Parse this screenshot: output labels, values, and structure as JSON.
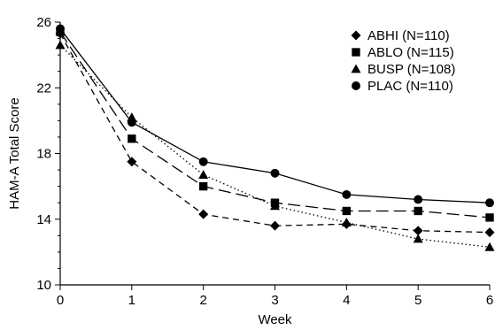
{
  "chart_data": {
    "type": "line",
    "x": [
      0,
      1,
      2,
      3,
      4,
      5,
      6
    ],
    "xlabel": "Week",
    "ylabel": "HAM-A Total Score",
    "xlim": [
      0,
      6
    ],
    "ylim": [
      10,
      26
    ],
    "x_ticks": [
      "0",
      "1",
      "2",
      "3",
      "4",
      "5",
      "6"
    ],
    "y_ticks": [
      "10",
      "14",
      "18",
      "22",
      "26"
    ],
    "grid": false,
    "legend_position": "top-right",
    "series": [
      {
        "name": "ABHI (N=110)",
        "marker": "diamond",
        "line_style": "dashed",
        "values": [
          25.3,
          17.5,
          14.3,
          13.6,
          13.7,
          13.3,
          13.2
        ]
      },
      {
        "name": "ABLO (N=115)",
        "marker": "square",
        "line_style": "long-dash",
        "values": [
          25.4,
          18.9,
          16.0,
          15.0,
          14.5,
          14.5,
          14.1
        ]
      },
      {
        "name": "BUSP (N=108)",
        "marker": "triangle",
        "line_style": "dotted",
        "values": [
          24.6,
          20.2,
          16.7,
          14.8,
          13.8,
          12.8,
          12.3
        ]
      },
      {
        "name": "PLAC (N=110)",
        "marker": "circle",
        "line_style": "solid",
        "values": [
          25.6,
          19.9,
          17.5,
          16.8,
          15.5,
          15.2,
          15.0
        ]
      }
    ]
  }
}
